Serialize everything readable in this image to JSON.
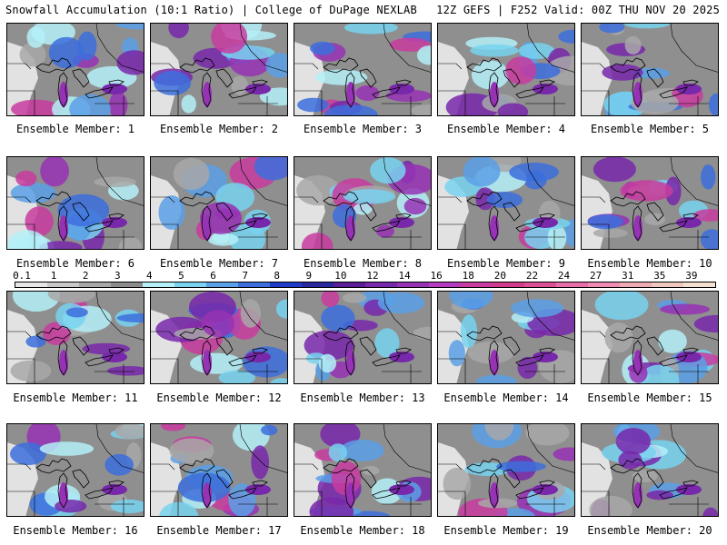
{
  "header": {
    "left": "Snowfall Accumulation (10:1 Ratio) | College of DuPage NEXLAB",
    "right": "12Z GEFS | F252 Valid: 00Z THU NOV 20 2025"
  },
  "members": [
    "Ensemble Member: 1",
    "Ensemble Member: 2",
    "Ensemble Member: 3",
    "Ensemble Member: 4",
    "Ensemble Member: 5",
    "Ensemble Member: 6",
    "Ensemble Member: 7",
    "Ensemble Member: 8",
    "Ensemble Member: 9",
    "Ensemble Member: 10",
    "Ensemble Member: 11",
    "Ensemble Member: 12",
    "Ensemble Member: 13",
    "Ensemble Member: 14",
    "Ensemble Member: 15",
    "Ensemble Member: 16",
    "Ensemble Member: 17",
    "Ensemble Member: 18",
    "Ensemble Member: 19",
    "Ensemble Member: 20"
  ],
  "legend": {
    "labels": [
      "0.1",
      "1",
      "2",
      "3",
      "4",
      "5",
      "6",
      "7",
      "8",
      "9",
      "10",
      "12",
      "14",
      "16",
      "18",
      "20",
      "22",
      "24",
      "27",
      "31",
      "35",
      "39"
    ],
    "colors": [
      "#e6e6e6",
      "#c8c8c8",
      "#a8a8a8",
      "#8c8c8c",
      "#b4f0f8",
      "#78d2f0",
      "#5aa0e6",
      "#3c6edc",
      "#1e3cc8",
      "#2828a0",
      "#5a1e96",
      "#7828aa",
      "#9632b4",
      "#b43cbe",
      "#c83ca0",
      "#d23c8c",
      "#dc5096",
      "#e66eaa",
      "#f08cb4",
      "#f0aab4",
      "#f0c8be",
      "#f5e1d2"
    ]
  }
}
